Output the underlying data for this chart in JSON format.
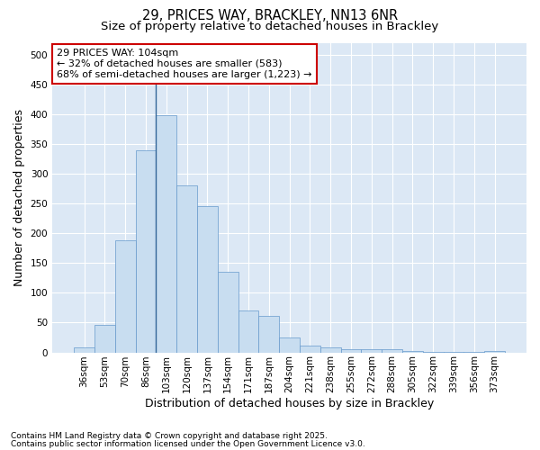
{
  "title_line1": "29, PRICES WAY, BRACKLEY, NN13 6NR",
  "title_line2": "Size of property relative to detached houses in Brackley",
  "xlabel": "Distribution of detached houses by size in Brackley",
  "ylabel": "Number of detached properties",
  "categories": [
    "36sqm",
    "53sqm",
    "70sqm",
    "86sqm",
    "103sqm",
    "120sqm",
    "137sqm",
    "154sqm",
    "171sqm",
    "187sqm",
    "204sqm",
    "221sqm",
    "238sqm",
    "255sqm",
    "272sqm",
    "288sqm",
    "305sqm",
    "322sqm",
    "339sqm",
    "356sqm",
    "373sqm"
  ],
  "values": [
    8,
    46,
    188,
    340,
    398,
    280,
    246,
    136,
    70,
    61,
    25,
    12,
    9,
    6,
    5,
    5,
    3,
    1,
    1,
    1,
    3
  ],
  "bar_color": "#c8ddf0",
  "bar_edge_color": "#6699cc",
  "vline_color": "#336699",
  "annotation_text": "29 PRICES WAY: 104sqm\n← 32% of detached houses are smaller (583)\n68% of semi-detached houses are larger (1,223) →",
  "annotation_box_color": "#ffffff",
  "annotation_border_color": "#cc0000",
  "ylim": [
    0,
    520
  ],
  "yticks": [
    0,
    50,
    100,
    150,
    200,
    250,
    300,
    350,
    400,
    450,
    500
  ],
  "footnote_line1": "Contains HM Land Registry data © Crown copyright and database right 2025.",
  "footnote_line2": "Contains public sector information licensed under the Open Government Licence v3.0.",
  "bg_color": "#ffffff",
  "plot_bg_color": "#dce8f5",
  "grid_color": "#ffffff",
  "title_fontsize": 10.5,
  "subtitle_fontsize": 9.5,
  "axis_label_fontsize": 9,
  "tick_fontsize": 7.5,
  "annotation_fontsize": 8,
  "footnote_fontsize": 6.5
}
